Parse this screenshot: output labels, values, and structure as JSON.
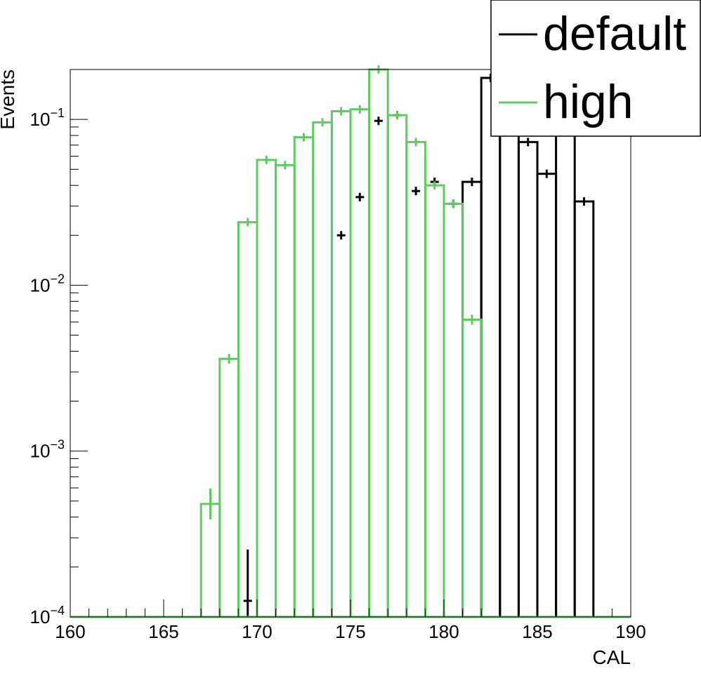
{
  "chart_data": {
    "type": "bar",
    "xlabel": "CAL",
    "ylabel": "Events",
    "y_scale": "log",
    "xlim": [
      160,
      190
    ],
    "ylim": [
      0.0001,
      0.2
    ],
    "x_ticks": [
      160,
      165,
      170,
      175,
      180,
      185,
      190
    ],
    "x_tick_labels": [
      "160",
      "165",
      "170",
      "175",
      "180",
      "185",
      "190"
    ],
    "y_ticks": [
      0.0001,
      0.001,
      0.01,
      0.1
    ],
    "y_tick_labels": [
      {
        "base": "10",
        "exp": "−4"
      },
      {
        "base": "10",
        "exp": "−3"
      },
      {
        "base": "10",
        "exp": "−2"
      },
      {
        "base": "10",
        "exp": "−1"
      }
    ],
    "legend_position": "top-right",
    "bin_width": 1,
    "series": [
      {
        "name": "default",
        "color": "#000000",
        "style": "histogram-with-errors",
        "bins": [
          {
            "x": 169.0,
            "y": 0.000125
          },
          {
            "x": 174.0,
            "y": 0.02
          },
          {
            "x": 175.0,
            "y": 0.034
          },
          {
            "x": 176.0,
            "y": 0.098
          },
          {
            "x": 177.0,
            "y": 0.106
          },
          {
            "x": 178.0,
            "y": 0.037
          },
          {
            "x": 179.0,
            "y": 0.042
          },
          {
            "x": 180.0,
            "y": 0.031
          },
          {
            "x": 181.0,
            "y": 0.042
          },
          {
            "x": 182.0,
            "y": 0.178
          },
          {
            "x": 183.0,
            "y": 0.175
          },
          {
            "x": 184.0,
            "y": 0.073
          },
          {
            "x": 185.0,
            "y": 0.047
          },
          {
            "x": 186.0,
            "y": 0.13
          },
          {
            "x": 187.0,
            "y": 0.032
          }
        ]
      },
      {
        "name": "high",
        "color": "#5ecb5e",
        "style": "histogram-with-errors",
        "bins": [
          {
            "x": 167.0,
            "y": 0.00048
          },
          {
            "x": 168.0,
            "y": 0.0036
          },
          {
            "x": 169.0,
            "y": 0.024
          },
          {
            "x": 170.0,
            "y": 0.057
          },
          {
            "x": 171.0,
            "y": 0.053
          },
          {
            "x": 172.0,
            "y": 0.078
          },
          {
            "x": 173.0,
            "y": 0.096
          },
          {
            "x": 174.0,
            "y": 0.112
          },
          {
            "x": 175.0,
            "y": 0.115
          },
          {
            "x": 176.0,
            "y": 0.2
          },
          {
            "x": 177.0,
            "y": 0.106
          },
          {
            "x": 178.0,
            "y": 0.073
          },
          {
            "x": 179.0,
            "y": 0.04
          },
          {
            "x": 180.0,
            "y": 0.031
          },
          {
            "x": 181.0,
            "y": 0.0062
          }
        ]
      }
    ]
  }
}
